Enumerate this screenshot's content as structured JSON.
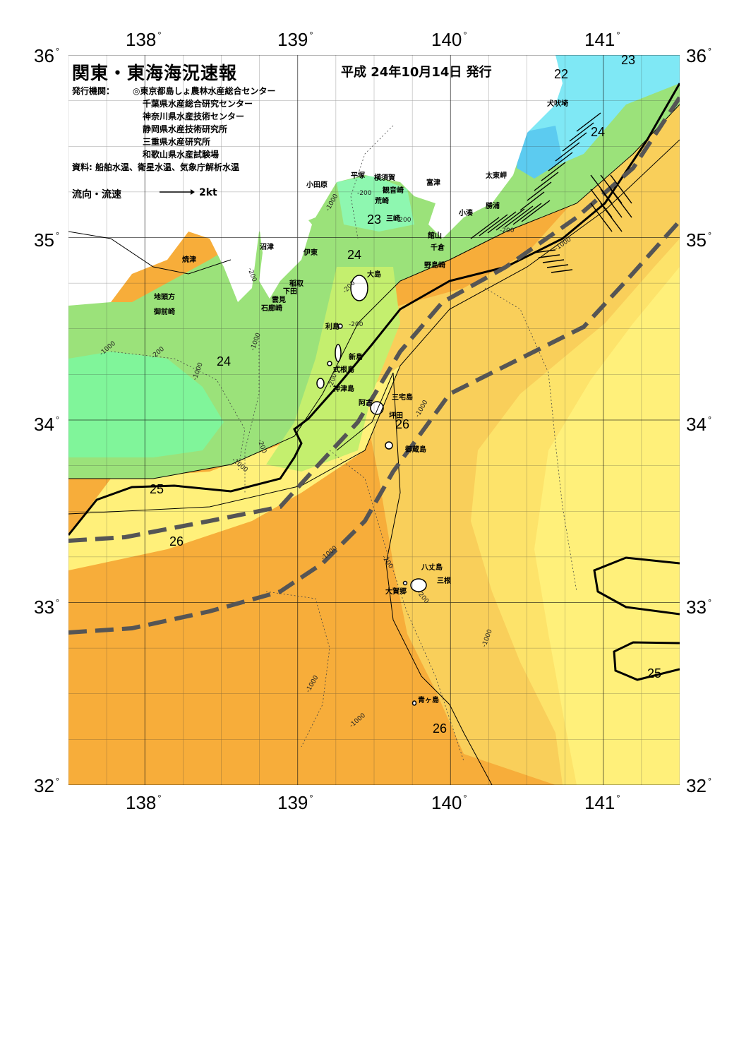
{
  "title": "関東・東海海況速報",
  "issue_date": "平成 24年10月14日 発行",
  "issuer_label": "発行機関：",
  "issuers": [
    "◎東京都島しょ農林水産総合センター",
    "千葉県水産総合研究センター",
    "神奈川県水産技術センター",
    "静岡県水産技術研究所",
    "三重県水産研究所",
    "和歌山県水産試験場"
  ],
  "source": "資料: 船舶水温、衛星水温、気象庁解析水温",
  "legend": {
    "flow_label": "流向・流速",
    "flow_scale": "2kt"
  },
  "axes": {
    "longitudes": [
      "138",
      "139",
      "140",
      "141"
    ],
    "latitudes": [
      "36",
      "35",
      "34",
      "33",
      "32"
    ],
    "degree_symbol": "°"
  },
  "places": [
    {
      "id": "inubosaki",
      "name": "犬吠埼"
    },
    {
      "id": "taitomisaki",
      "name": "太東岬"
    },
    {
      "id": "katsuura",
      "name": "勝浦"
    },
    {
      "id": "kominato",
      "name": "小湊"
    },
    {
      "id": "futtsu",
      "name": "富津"
    },
    {
      "id": "yokosuka",
      "name": "横須賀"
    },
    {
      "id": "kannonzaki",
      "name": "観音崎"
    },
    {
      "id": "arasaki",
      "name": "荒崎"
    },
    {
      "id": "hiratsuka",
      "name": "平塚"
    },
    {
      "id": "odawara",
      "name": "小田原"
    },
    {
      "id": "misaki",
      "name": "三崎"
    },
    {
      "id": "tateyama",
      "name": "館山"
    },
    {
      "id": "chikura",
      "name": "千倉"
    },
    {
      "id": "nojimazaki",
      "name": "野島崎"
    },
    {
      "id": "numazu",
      "name": "沼津"
    },
    {
      "id": "ito",
      "name": "伊東"
    },
    {
      "id": "yaizu",
      "name": "焼津"
    },
    {
      "id": "oshima",
      "name": "大島"
    },
    {
      "id": "inatori",
      "name": "稲取"
    },
    {
      "id": "shimoda",
      "name": "下田"
    },
    {
      "id": "kumomi",
      "name": "雲見"
    },
    {
      "id": "irozaki",
      "name": "石廊崎"
    },
    {
      "id": "jitokata",
      "name": "地頭方"
    },
    {
      "id": "omaezaki",
      "name": "御前崎"
    },
    {
      "id": "toshima",
      "name": "利島"
    },
    {
      "id": "niijima",
      "name": "新島"
    },
    {
      "id": "shikinejima",
      "name": "式根島"
    },
    {
      "id": "kozushima",
      "name": "神津島"
    },
    {
      "id": "miyakejima",
      "name": "三宅島"
    },
    {
      "id": "ako",
      "name": "阿古"
    },
    {
      "id": "tsubota",
      "name": "坪田"
    },
    {
      "id": "mikurajima",
      "name": "御蔵島"
    },
    {
      "id": "hachijojima",
      "name": "八丈島"
    },
    {
      "id": "mitsune",
      "name": "三根"
    },
    {
      "id": "okago",
      "name": "大賀郷"
    },
    {
      "id": "aogashima",
      "name": "青ヶ島"
    }
  ],
  "temperature_labels": [
    "23",
    "22",
    "24",
    "23",
    "24",
    "24",
    "26",
    "25",
    "26",
    "25",
    "26"
  ],
  "depth_labels": [
    "-200",
    "-1000",
    "-200",
    "-200",
    "-200",
    "-1000",
    "-200",
    "-1000",
    "-200",
    "-200",
    "-1000",
    "-200",
    "-1000",
    "-1000",
    "-1000",
    "-200",
    "-1000",
    "-1000",
    "-1000",
    "-1000",
    "-200",
    "-200"
  ],
  "colors": {
    "t22": "#7fe8f5",
    "t22_deep": "#5ccbf0",
    "t23": "#8ef7b0",
    "t23b": "#80f59a",
    "t24": "#9be27a",
    "t24b": "#c4ef6e",
    "t25": "#fff07a",
    "t25b": "#fde36a",
    "t25_5": "#f9cf5a",
    "t26": "#f7ad3a",
    "land": "#ffffff",
    "kuroshio_axis": "#555555",
    "grid": "#333333"
  },
  "map": {
    "lon_range": [
      137.5,
      141.5
    ],
    "lat_range": [
      32,
      36
    ]
  }
}
